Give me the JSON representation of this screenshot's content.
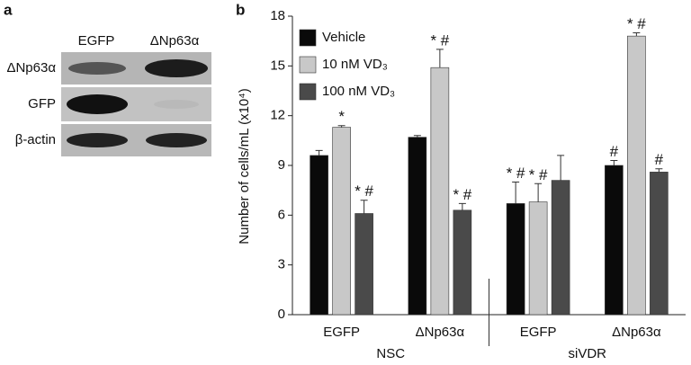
{
  "panel_a": {
    "label": "a",
    "lanes": [
      "EGFP",
      "ΔNp63α"
    ],
    "rows": [
      "ΔNp63α",
      "GFP",
      "β-actin"
    ]
  },
  "chart_data": {
    "type": "bar",
    "label": "b",
    "y_label": "Number of cells/mL (x10⁴)",
    "categories": [
      "EGFP",
      "ΔNp63α",
      "EGFP",
      "ΔNp63α"
    ],
    "groups": [
      "NSC",
      "siVDR"
    ],
    "series": [
      {
        "name": "Vehicle",
        "color": "#0a0a0a",
        "values": [
          9.6,
          10.7,
          6.7,
          9.0
        ],
        "errors": [
          0.3,
          0.1,
          1.3,
          0.3
        ],
        "annotations": [
          null,
          null,
          "* #",
          "#"
        ]
      },
      {
        "name": "10 nM VD₃",
        "color": "#c8c8c8",
        "values": [
          11.3,
          14.9,
          6.8,
          16.8
        ],
        "errors": [
          0.1,
          1.1,
          1.1,
          0.2
        ],
        "annotations": [
          "*",
          "* #",
          "* #",
          "* #"
        ]
      },
      {
        "name": "100 nM VD₃",
        "color": "#4a4a4a",
        "values": [
          6.1,
          6.3,
          8.1,
          8.6
        ],
        "errors": [
          0.8,
          0.4,
          1.5,
          0.2
        ],
        "annotations": [
          "* #",
          "* #",
          null,
          "#"
        ]
      }
    ],
    "ylim": [
      0,
      18
    ],
    "yticks": [
      0,
      3,
      6,
      9,
      12,
      15,
      18
    ],
    "grid": false,
    "legend": "top-left"
  }
}
